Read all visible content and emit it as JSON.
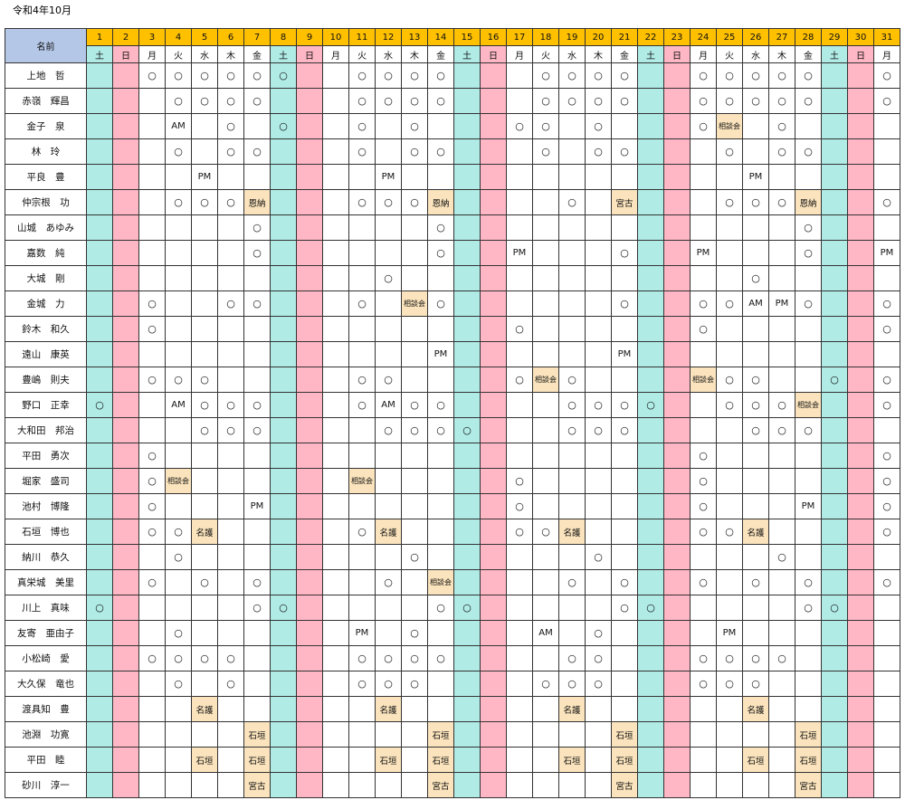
{
  "caption": "令和4年10月",
  "name_header": "名前",
  "days": [
    {
      "d": "1",
      "w": "土"
    },
    {
      "d": "2",
      "w": "日"
    },
    {
      "d": "3",
      "w": "月"
    },
    {
      "d": "4",
      "w": "火"
    },
    {
      "d": "5",
      "w": "水"
    },
    {
      "d": "6",
      "w": "木"
    },
    {
      "d": "7",
      "w": "金"
    },
    {
      "d": "8",
      "w": "土"
    },
    {
      "d": "9",
      "w": "日"
    },
    {
      "d": "10",
      "w": "月"
    },
    {
      "d": "11",
      "w": "火"
    },
    {
      "d": "12",
      "w": "水"
    },
    {
      "d": "13",
      "w": "木"
    },
    {
      "d": "14",
      "w": "金"
    },
    {
      "d": "15",
      "w": "土"
    },
    {
      "d": "16",
      "w": "日"
    },
    {
      "d": "17",
      "w": "月"
    },
    {
      "d": "18",
      "w": "火"
    },
    {
      "d": "19",
      "w": "水"
    },
    {
      "d": "20",
      "w": "木"
    },
    {
      "d": "21",
      "w": "金"
    },
    {
      "d": "22",
      "w": "土"
    },
    {
      "d": "23",
      "w": "日"
    },
    {
      "d": "24",
      "w": "月"
    },
    {
      "d": "25",
      "w": "火"
    },
    {
      "d": "26",
      "w": "水"
    },
    {
      "d": "27",
      "w": "木"
    },
    {
      "d": "28",
      "w": "金"
    },
    {
      "d": "29",
      "w": "土"
    },
    {
      "d": "30",
      "w": "日"
    },
    {
      "d": "31",
      "w": "月"
    }
  ],
  "rows": [
    {
      "name": "上地　哲",
      "cells": [
        "",
        "",
        "○",
        "○",
        "○",
        "○",
        "○",
        "○",
        "",
        "",
        "○",
        "○",
        "○",
        "○",
        "",
        "",
        "",
        "○",
        "○",
        "○",
        "○",
        "",
        "",
        "○",
        "○",
        "○",
        "○",
        "○",
        "",
        "",
        "○"
      ]
    },
    {
      "name": "赤嶺　輝昌",
      "cells": [
        "",
        "",
        "",
        "○",
        "○",
        "○",
        "○",
        "",
        "",
        "",
        "○",
        "○",
        "○",
        "○",
        "",
        "",
        "",
        "○",
        "○",
        "○",
        "○",
        "",
        "",
        "○",
        "○",
        "○",
        "○",
        "○",
        "",
        "",
        "○"
      ]
    },
    {
      "name": "金子　泉",
      "cells": [
        "",
        "",
        "",
        "AM",
        "",
        "○",
        "",
        "○",
        "",
        "",
        "○",
        "",
        "○",
        "",
        "",
        "",
        "○",
        "○",
        "",
        "○",
        "",
        "",
        "",
        "○",
        "相談会",
        "",
        "○",
        "",
        "",
        "",
        ""
      ]
    },
    {
      "name": "林　玲",
      "cells": [
        "",
        "",
        "",
        "○",
        "",
        "○",
        "○",
        "",
        "",
        "",
        "○",
        "",
        "○",
        "○",
        "",
        "",
        "",
        "○",
        "",
        "○",
        "○",
        "",
        "",
        "",
        "○",
        "",
        "○",
        "○",
        "",
        "",
        ""
      ]
    },
    {
      "name": "平良　豊",
      "cells": [
        "",
        "",
        "",
        "",
        "PM",
        "",
        "",
        "",
        "",
        "",
        "",
        "PM",
        "",
        "",
        "",
        "",
        "",
        "",
        "",
        "",
        "",
        "",
        "",
        "",
        "",
        "PM",
        "",
        "",
        "",
        "",
        ""
      ]
    },
    {
      "name": "仲宗根　功",
      "cells": [
        "",
        "",
        "",
        "○",
        "○",
        "○",
        "恩納",
        "",
        "",
        "",
        "○",
        "○",
        "○",
        "恩納",
        "",
        "",
        "",
        "",
        "○",
        "",
        "宮古",
        "",
        "",
        "",
        "○",
        "○",
        "○",
        "恩納",
        "",
        "",
        "○"
      ]
    },
    {
      "name": "山城　あゆみ",
      "cells": [
        "",
        "",
        "",
        "",
        "",
        "",
        "○",
        "",
        "",
        "",
        "",
        "",
        "",
        "○",
        "",
        "",
        "",
        "",
        "",
        "",
        "",
        "",
        "",
        "",
        "",
        "",
        "",
        "○",
        "",
        "",
        ""
      ]
    },
    {
      "name": "嘉数　純",
      "cells": [
        "",
        "",
        "",
        "",
        "",
        "",
        "○",
        "",
        "",
        "",
        "",
        "",
        "",
        "○",
        "",
        "",
        "PM",
        "",
        "",
        "",
        "○",
        "",
        "",
        "PM",
        "",
        "",
        "",
        "○",
        "",
        "",
        "PM"
      ]
    },
    {
      "name": "大城　剛",
      "cells": [
        "",
        "",
        "",
        "",
        "",
        "",
        "",
        "",
        "",
        "",
        "",
        "○",
        "",
        "",
        "",
        "",
        "",
        "",
        "",
        "",
        "",
        "",
        "",
        "",
        "",
        "○",
        "",
        "",
        "",
        "",
        ""
      ]
    },
    {
      "name": "金城　力",
      "cells": [
        "",
        "",
        "○",
        "",
        "",
        "○",
        "○",
        "",
        "",
        "",
        "○",
        "",
        "相談会",
        "○",
        "",
        "",
        "",
        "",
        "",
        "",
        "○",
        "",
        "",
        "○",
        "○",
        "AM",
        "PM",
        "○",
        "",
        "",
        "○"
      ]
    },
    {
      "name": "鈴木　和久",
      "cells": [
        "",
        "",
        "○",
        "",
        "",
        "",
        "",
        "",
        "",
        "",
        "",
        "",
        "",
        "",
        "",
        "",
        "○",
        "",
        "",
        "",
        "",
        "",
        "",
        "○",
        "",
        "",
        "",
        "",
        "",
        "",
        "○"
      ]
    },
    {
      "name": "遠山　康英",
      "cells": [
        "",
        "",
        "",
        "",
        "",
        "",
        "",
        "",
        "",
        "",
        "",
        "",
        "",
        "PM",
        "",
        "",
        "",
        "",
        "",
        "",
        "PM",
        "",
        "",
        "",
        "",
        "",
        "",
        "",
        "",
        "",
        ""
      ]
    },
    {
      "name": "豊嶋　則夫",
      "cells": [
        "",
        "",
        "○",
        "○",
        "○",
        "",
        "",
        "",
        "",
        "",
        "○",
        "○",
        "",
        "",
        "",
        "",
        "○",
        "相談会",
        "○",
        "",
        "",
        "",
        "",
        "相談会",
        "○",
        "○",
        "",
        "",
        "○",
        "",
        "○"
      ]
    },
    {
      "name": "野口　正幸",
      "cells": [
        "○",
        "",
        "",
        "AM",
        "○",
        "○",
        "○",
        "",
        "",
        "",
        "○",
        "AM",
        "○",
        "○",
        "",
        "",
        "",
        "",
        "○",
        "○",
        "○",
        "○",
        "",
        "",
        "○",
        "○",
        "○",
        "相談会",
        "",
        "",
        "○"
      ]
    },
    {
      "name": "大和田　邦治",
      "cells": [
        "",
        "",
        "",
        "",
        "○",
        "○",
        "○",
        "",
        "",
        "",
        "",
        "○",
        "○",
        "○",
        "○",
        "",
        "",
        "",
        "○",
        "○",
        "○",
        "",
        "",
        "",
        "",
        "○",
        "○",
        "○",
        "",
        "",
        ""
      ]
    },
    {
      "name": "平田　勇次",
      "cells": [
        "",
        "",
        "○",
        "",
        "",
        "",
        "",
        "",
        "",
        "",
        "",
        "",
        "",
        "",
        "",
        "",
        "",
        "",
        "",
        "",
        "",
        "",
        "",
        "○",
        "",
        "",
        "",
        "",
        "",
        "",
        "○"
      ]
    },
    {
      "name": "堀家　盛司",
      "cells": [
        "",
        "",
        "○",
        "相談会",
        "",
        "",
        "",
        "",
        "",
        "",
        "相談会",
        "",
        "",
        "",
        "",
        "",
        "○",
        "",
        "",
        "",
        "",
        "",
        "",
        "○",
        "",
        "",
        "",
        "",
        "",
        "",
        "○"
      ]
    },
    {
      "name": "池村　博隆",
      "cells": [
        "",
        "",
        "○",
        "",
        "",
        "",
        "PM",
        "",
        "",
        "",
        "",
        "",
        "",
        "",
        "",
        "",
        "○",
        "",
        "",
        "",
        "",
        "",
        "",
        "○",
        "",
        "",
        "",
        "PM",
        "",
        "",
        "○"
      ]
    },
    {
      "name": "石垣　博也",
      "cells": [
        "",
        "",
        "○",
        "○",
        "名護",
        "",
        "",
        "",
        "",
        "",
        "○",
        "名護",
        "",
        "",
        "",
        "",
        "○",
        "○",
        "名護",
        "",
        "",
        "",
        "",
        "○",
        "○",
        "名護",
        "",
        "",
        "",
        "",
        "○"
      ]
    },
    {
      "name": "納川　恭久",
      "cells": [
        "",
        "",
        "",
        "○",
        "",
        "",
        "",
        "",
        "",
        "",
        "",
        "",
        "○",
        "",
        "",
        "",
        "",
        "",
        "",
        "○",
        "",
        "",
        "",
        "",
        "",
        "",
        "○",
        "",
        "",
        "",
        ""
      ]
    },
    {
      "name": "真栄城　美里",
      "cells": [
        "",
        "",
        "○",
        "",
        "○",
        "",
        "○",
        "",
        "",
        "",
        "",
        "○",
        "",
        "相談会",
        "",
        "",
        "",
        "",
        "○",
        "",
        "○",
        "",
        "",
        "○",
        "",
        "○",
        "",
        "○",
        "",
        "",
        "○"
      ]
    },
    {
      "name": "川上　真味",
      "cells": [
        "○",
        "",
        "",
        "",
        "",
        "",
        "○",
        "○",
        "",
        "",
        "",
        "",
        "",
        "○",
        "○",
        "",
        "",
        "",
        "",
        "",
        "○",
        "○",
        "",
        "",
        "",
        "",
        "",
        "○",
        "○",
        "",
        ""
      ]
    },
    {
      "name": "友寄　亜由子",
      "cells": [
        "",
        "",
        "",
        "○",
        "",
        "",
        "",
        "",
        "",
        "",
        "PM",
        "",
        "○",
        "",
        "",
        "",
        "",
        "AM",
        "",
        "○",
        "",
        "",
        "",
        "",
        "PM",
        "",
        "",
        "",
        "",
        "",
        ""
      ]
    },
    {
      "name": "小松崎　愛",
      "cells": [
        "",
        "",
        "○",
        "○",
        "○",
        "○",
        "",
        "",
        "",
        "",
        "○",
        "○",
        "○",
        "○",
        "",
        "",
        "",
        "",
        "○",
        "○",
        "",
        "",
        "",
        "○",
        "○",
        "○",
        "○",
        "",
        "",
        "",
        ""
      ]
    },
    {
      "name": "大久保　竜也",
      "cells": [
        "",
        "",
        "",
        "○",
        "",
        "○",
        "",
        "",
        "",
        "",
        "○",
        "○",
        "○",
        "",
        "",
        "",
        "",
        "○",
        "○",
        "○",
        "",
        "",
        "",
        "○",
        "○",
        "○",
        "",
        "",
        "",
        "",
        ""
      ]
    },
    {
      "name": "渡具知　豊",
      "cells": [
        "",
        "",
        "",
        "",
        "名護",
        "",
        "",
        "",
        "",
        "",
        "",
        "名護",
        "",
        "",
        "",
        "",
        "",
        "",
        "名護",
        "",
        "",
        "",
        "",
        "",
        "",
        "名護",
        "",
        "",
        "",
        "",
        ""
      ]
    },
    {
      "name": "池淵　功寛",
      "cells": [
        "",
        "",
        "",
        "",
        "",
        "",
        "石垣",
        "",
        "",
        "",
        "",
        "",
        "",
        "石垣",
        "",
        "",
        "",
        "",
        "",
        "",
        "石垣",
        "",
        "",
        "",
        "",
        "",
        "",
        "石垣",
        "",
        "",
        ""
      ]
    },
    {
      "name": "平田　睦",
      "cells": [
        "",
        "",
        "",
        "",
        "石垣",
        "",
        "石垣",
        "",
        "",
        "",
        "",
        "石垣",
        "",
        "石垣",
        "",
        "",
        "",
        "",
        "石垣",
        "",
        "石垣",
        "",
        "",
        "",
        "",
        "石垣",
        "",
        "石垣",
        "",
        "",
        ""
      ]
    },
    {
      "name": "砂川　淳一",
      "cells": [
        "",
        "",
        "",
        "",
        "",
        "",
        "宮古",
        "",
        "",
        "",
        "",
        "",
        "",
        "宮古",
        "",
        "",
        "",
        "",
        "",
        "",
        "宮古",
        "",
        "",
        "",
        "",
        "",
        "",
        "宮古",
        "",
        "",
        ""
      ]
    }
  ]
}
